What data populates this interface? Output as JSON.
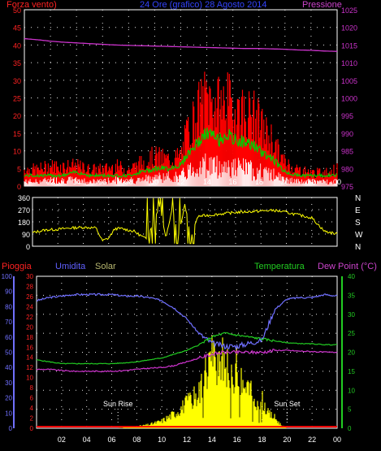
{
  "header": {
    "left": "Forza vento)",
    "center": "24 Ore (grafico) 28 Agosto 2014",
    "right": "Pressione"
  },
  "colors": {
    "bg": "#000000",
    "frame": "#ffffff",
    "grid": "#ffffff",
    "wind_avg": "#ffffff",
    "wind_gust": "#ff0000",
    "wind_mean_line": "#00cc00",
    "pressure": "#cc33cc",
    "direction": "#ffff00",
    "humidity": "#7070ff",
    "temperature": "#22cc22",
    "dewpoint": "#cc33cc",
    "solar": "#ffff00",
    "rain": "#ff0000",
    "label_red": "#ff2222",
    "label_blue": "#6060ff",
    "label_green": "#22cc22",
    "label_magenta": "#cc44cc",
    "label_tan": "#b8b870",
    "axis_left_red": "#ff2222",
    "axis_right_magenta": "#cc33cc",
    "axis_humidity": "#7070ff",
    "axis_temp_green": "#22cc22"
  },
  "time_ticks": [
    "02",
    "04",
    "06",
    "08",
    "10",
    "12",
    "14",
    "16",
    "18",
    "20",
    "22",
    "00"
  ],
  "chart_data": [
    {
      "type": "line",
      "name": "wind_pressure",
      "left_axis": {
        "label": "Forza vento)",
        "ticks": [
          "0",
          "5",
          "10",
          "15",
          "20",
          "25",
          "30",
          "35",
          "40",
          "45",
          "50"
        ],
        "range": [
          0,
          50
        ]
      },
      "right_axis": {
        "label": "Pressione",
        "ticks": [
          "975",
          "980",
          "985",
          "990",
          "995",
          "1000",
          "1005",
          "1010",
          "1015",
          "1020",
          "1025"
        ],
        "range": [
          975,
          1025
        ]
      },
      "x_range_hours": [
        0,
        24
      ],
      "series": [
        {
          "key": "pressure",
          "axis": "right",
          "x": [
            0,
            1,
            2,
            3,
            4,
            5,
            6,
            7,
            8,
            9,
            10,
            11,
            12,
            13,
            14,
            15,
            16,
            17,
            18,
            19,
            20,
            21,
            22,
            23,
            24
          ],
          "values": [
            1016.8,
            1016.5,
            1016.1,
            1015.8,
            1015.6,
            1015.4,
            1015.2,
            1015.0,
            1014.9,
            1014.8,
            1014.7,
            1014.6,
            1014.5,
            1014.4,
            1014.3,
            1014.2,
            1014.1,
            1014.0,
            1014.0,
            1013.9,
            1013.8,
            1013.6,
            1013.5,
            1013.3,
            1013.2
          ]
        },
        {
          "key": "gust",
          "axis": "left",
          "x": [
            0,
            1,
            2,
            3,
            4,
            5,
            6,
            7,
            8,
            9,
            10,
            11,
            12,
            12.5,
            13,
            13.5,
            14,
            14.5,
            15,
            15.5,
            16,
            16.5,
            17,
            17.5,
            18,
            18.5,
            19,
            19.5,
            20,
            21,
            22,
            23,
            24
          ],
          "values": [
            5,
            5,
            6,
            6,
            6,
            5,
            5,
            6,
            5,
            7,
            9,
            8,
            9,
            16,
            20,
            24,
            27,
            25,
            24,
            26,
            23,
            24,
            21,
            22,
            19,
            16,
            14,
            10,
            7,
            5,
            4,
            4,
            5
          ]
        },
        {
          "key": "mean",
          "axis": "left",
          "x": [
            0,
            1,
            2,
            3,
            4,
            5,
            6,
            7,
            8,
            9,
            10,
            11,
            12,
            12.5,
            13,
            13.5,
            14,
            14.5,
            15,
            15.5,
            16,
            16.5,
            17,
            17.5,
            18,
            18.5,
            19,
            19.5,
            20,
            21,
            22,
            23,
            24
          ],
          "values": [
            3,
            3,
            3,
            3,
            4,
            3,
            3,
            3,
            3,
            4,
            5,
            5,
            6,
            9,
            11,
            13,
            15,
            14,
            13,
            15,
            13,
            13,
            12,
            12,
            10,
            9,
            8,
            6,
            4,
            3,
            3,
            3,
            3
          ]
        },
        {
          "key": "avg",
          "axis": "left",
          "x": [
            0,
            1,
            2,
            3,
            4,
            5,
            6,
            7,
            8,
            9,
            10,
            11,
            12,
            12.5,
            13,
            13.5,
            14,
            14.5,
            15,
            15.5,
            16,
            16.5,
            17,
            17.5,
            18,
            18.5,
            19,
            19.5,
            20,
            21,
            22,
            23,
            24
          ],
          "values": [
            1.5,
            1.5,
            2,
            2,
            2,
            1.5,
            1.5,
            2,
            2,
            2,
            3,
            3,
            3,
            5,
            6,
            7,
            7,
            7,
            6,
            7,
            6,
            6,
            6,
            5,
            5,
            4,
            4,
            3,
            2,
            1.5,
            1.5,
            1.5,
            1.5
          ]
        }
      ]
    },
    {
      "type": "line",
      "name": "wind_direction",
      "left_axis": {
        "ticks": [
          "0",
          "90",
          "180",
          "270",
          "360"
        ],
        "range": [
          0,
          360
        ]
      },
      "right_axis_labels": [
        "N",
        "W",
        "S",
        "E",
        "N"
      ],
      "x_range_hours": [
        0,
        24
      ],
      "series": [
        {
          "key": "direction",
          "x": [
            0,
            0.5,
            1,
            2,
            3,
            4,
            5,
            5.5,
            6,
            6.5,
            7,
            8,
            9,
            10,
            10.5,
            11,
            11.5,
            12,
            12.5,
            13,
            14,
            15,
            16,
            17,
            18,
            19,
            20,
            21,
            22,
            23,
            24
          ],
          "values": [
            100,
            110,
            120,
            125,
            135,
            140,
            135,
            40,
            60,
            130,
            130,
            110,
            50,
            300,
            60,
            280,
            80,
            310,
            60,
            220,
            230,
            240,
            250,
            255,
            260,
            265,
            250,
            230,
            210,
            110,
            90
          ]
        }
      ]
    },
    {
      "type": "line",
      "name": "humidity_temp_solar",
      "left_axis_rain": {
        "label": "Pioggia",
        "ticks": [
          "0",
          "2",
          "4",
          "6",
          "8",
          "10",
          "12",
          "14",
          "16",
          "18",
          "20",
          "22",
          "24",
          "26",
          "28",
          "30"
        ],
        "range": [
          0,
          30
        ]
      },
      "left_axis_humidity": {
        "label": "Umidita",
        "ticks": [
          "0",
          "10",
          "20",
          "30",
          "40",
          "50",
          "60",
          "70",
          "80",
          "90",
          "100"
        ],
        "range": [
          0,
          100
        ]
      },
      "solar_label": "Solar",
      "right_axis": {
        "label_temp": "Temperatura",
        "label_dew": "Dew Point (°C)",
        "ticks": [
          "0",
          "5",
          "10",
          "15",
          "20",
          "25",
          "30",
          "35",
          "40"
        ],
        "range": [
          0,
          40
        ]
      },
      "annotations": [
        {
          "text": "Sun Rise",
          "x": 6.5
        },
        {
          "text": "Sun Set",
          "x": 20.0
        }
      ],
      "x_range_hours": [
        0,
        24
      ],
      "series": [
        {
          "key": "humidity",
          "axis": "humidity",
          "x": [
            0,
            1,
            2,
            3,
            4,
            5,
            6,
            7,
            8,
            9,
            10,
            11,
            12,
            13,
            14,
            15,
            16,
            17,
            18,
            19,
            20,
            21,
            22,
            23,
            24
          ],
          "values": [
            84,
            86,
            87,
            88,
            88,
            88,
            88,
            87,
            87,
            86,
            84,
            79,
            72,
            62,
            56,
            54,
            54,
            56,
            58,
            78,
            85,
            86,
            86,
            88,
            87
          ]
        },
        {
          "key": "temperature",
          "axis": "temp",
          "x": [
            0,
            1,
            2,
            3,
            4,
            5,
            6,
            7,
            8,
            9,
            10,
            11,
            12,
            13,
            14,
            15,
            16,
            17,
            18,
            19,
            20,
            21,
            22,
            23,
            24
          ],
          "values": [
            18,
            17.5,
            17,
            17,
            17,
            17,
            17,
            17.2,
            17.5,
            18,
            18.5,
            19.5,
            20.5,
            22,
            24,
            25,
            24.5,
            24,
            23.5,
            23,
            22.5,
            22.3,
            22.2,
            22,
            22
          ]
        },
        {
          "key": "dewpoint",
          "axis": "temp",
          "x": [
            0,
            1,
            2,
            3,
            4,
            5,
            6,
            7,
            8,
            9,
            10,
            11,
            12,
            13,
            14,
            15,
            16,
            17,
            18,
            19,
            20,
            21,
            22,
            23,
            24
          ],
          "values": [
            15.5,
            15.5,
            15.2,
            15,
            15,
            15,
            15,
            15.2,
            15.5,
            15.8,
            16,
            16.5,
            17.5,
            18.5,
            19.5,
            20,
            20,
            20,
            20,
            20.5,
            20.5,
            20.3,
            20.2,
            20,
            20
          ]
        },
        {
          "key": "solar",
          "axis": "temp_scale_solar",
          "x": [
            6.5,
            7,
            8,
            9,
            10,
            11,
            12,
            13,
            13.5,
            14,
            14.5,
            15,
            15.5,
            16,
            16.5,
            17,
            17.5,
            18,
            18.5,
            19,
            19.5,
            20
          ],
          "values": [
            0,
            0.2,
            0.5,
            1,
            2,
            4,
            7,
            10,
            16,
            21,
            15,
            20,
            13,
            17,
            11,
            11,
            6,
            8,
            4,
            3,
            1,
            0
          ]
        },
        {
          "key": "rain",
          "axis": "rain",
          "x": [
            0,
            24
          ],
          "values": [
            0.3,
            0.3
          ]
        }
      ]
    }
  ]
}
